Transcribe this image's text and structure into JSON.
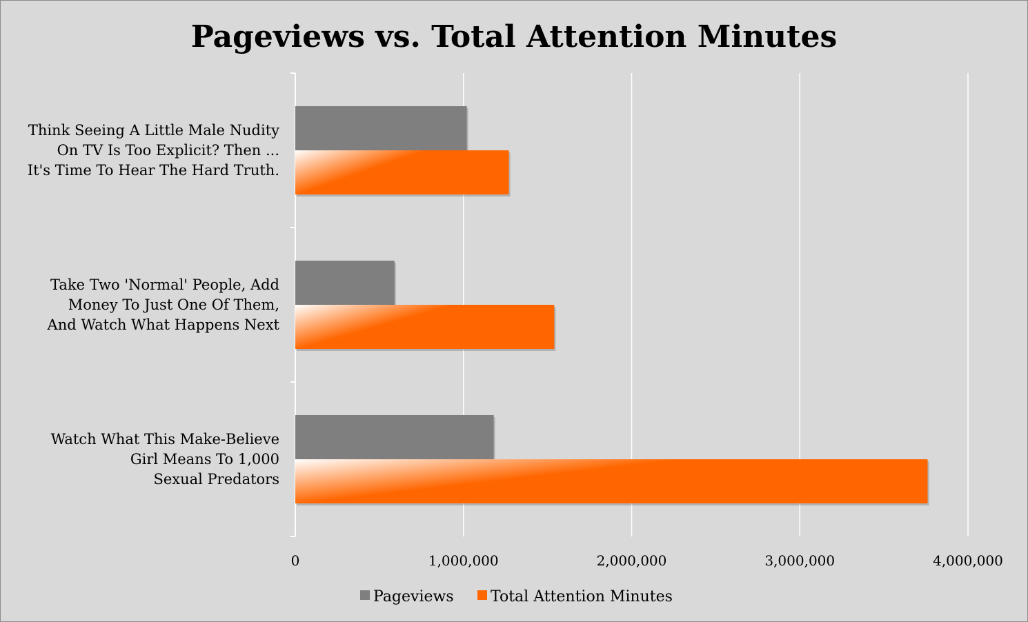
{
  "chart_data": {
    "type": "bar",
    "orientation": "horizontal",
    "title": "Pageviews vs. Total Attention Minutes",
    "categories": [
      [
        "Think Seeing A Little Male Nudity",
        "On TV Is Too Explicit? Then ...",
        "It's Time To Hear The Hard Truth."
      ],
      [
        "Take Two 'Normal' People, Add",
        "Money To Just One Of Them,",
        "And Watch What Happens Next"
      ],
      [
        "Watch What This Make-Believe",
        "Girl Means To 1,000",
        "Sexual Predators"
      ]
    ],
    "series": [
      {
        "name": "Pageviews",
        "color": "#7f7f7f",
        "values": [
          1020000,
          590000,
          1180000
        ]
      },
      {
        "name": "Total Attention Minutes",
        "color": "#ff6600",
        "values": [
          1270000,
          1540000,
          3760000
        ]
      }
    ],
    "xlim": [
      0,
      4000000
    ],
    "ticks": [
      0,
      1000000,
      2000000,
      3000000,
      4000000
    ],
    "tick_labels": [
      "0",
      "1,000,000",
      "2,000,000",
      "3,000,000",
      "4,000,000"
    ],
    "grid": true,
    "legend_position": "bottom",
    "background": "#d9d9d9",
    "gridline_color": "#ffffff"
  }
}
